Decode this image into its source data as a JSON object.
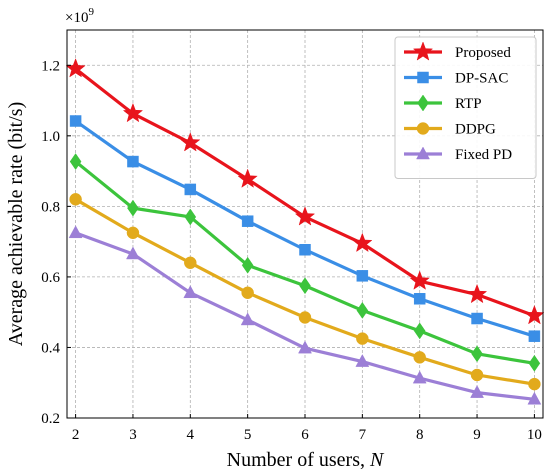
{
  "chart_data": {
    "type": "line",
    "x": [
      2,
      3,
      4,
      5,
      6,
      7,
      8,
      9,
      10
    ],
    "xlabel_prefix": "Number of users, ",
    "xlabel_var": "N",
    "ylabel": "Average achievable rate (bit/s)",
    "y_multiplier_base": "×10",
    "y_multiplier_exp": "9",
    "xlim": [
      1.85,
      10.15
    ],
    "ylim": [
      0.2,
      1.3
    ],
    "xticks": [
      "2",
      "3",
      "4",
      "5",
      "6",
      "7",
      "8",
      "9",
      "10"
    ],
    "yticks": [
      "0.2",
      "0.4",
      "0.6",
      "0.8",
      "1.0",
      "1.2"
    ],
    "ytick_values": [
      0.2,
      0.4,
      0.6,
      0.8,
      1.0,
      1.2
    ],
    "grid": true,
    "legend_position": "top-right",
    "series": [
      {
        "name": "Proposed",
        "values": [
          1.19,
          1.063,
          0.98,
          0.877,
          0.77,
          0.695,
          0.588,
          0.55,
          0.49
        ],
        "color": "#e8141c",
        "marker": "star"
      },
      {
        "name": "DP-SAC",
        "values": [
          1.042,
          0.927,
          0.848,
          0.758,
          0.677,
          0.603,
          0.538,
          0.482,
          0.432
        ],
        "color": "#3a8ee6",
        "marker": "square"
      },
      {
        "name": "RTP",
        "values": [
          0.927,
          0.795,
          0.77,
          0.633,
          0.575,
          0.505,
          0.447,
          0.382,
          0.355
        ],
        "color": "#3cc43c",
        "marker": "diamond"
      },
      {
        "name": "DDPG",
        "values": [
          0.82,
          0.725,
          0.64,
          0.555,
          0.485,
          0.425,
          0.372,
          0.322,
          0.296
        ],
        "color": "#e2aa1c",
        "marker": "circle"
      },
      {
        "name": "Fixed PD",
        "values": [
          0.725,
          0.665,
          0.555,
          0.478,
          0.398,
          0.36,
          0.313,
          0.272,
          0.253
        ],
        "color": "#9c7fd6",
        "marker": "triangle"
      }
    ]
  }
}
